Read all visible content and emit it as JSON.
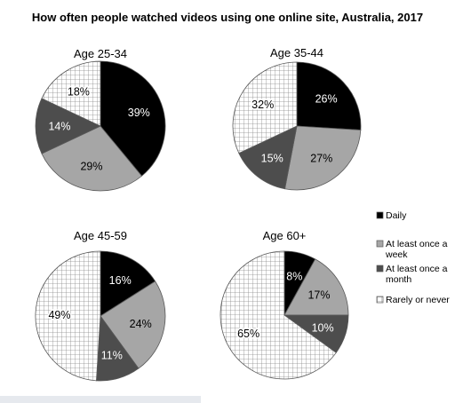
{
  "chart_data": {
    "type": "pie",
    "title": "How often people watched videos using one online site, Australia, 2017",
    "categories": [
      "Daily",
      "At least once a week",
      "At least once a month",
      "Rarely or never"
    ],
    "legend": {
      "placement": "right",
      "items": [
        {
          "label_lines": [
            "Daily"
          ],
          "fill": "solid-black"
        },
        {
          "label_lines": [
            "At least once a",
            "week"
          ],
          "fill": "light-gray"
        },
        {
          "label_lines": [
            "At least once a",
            "month"
          ],
          "fill": "dark-gray"
        },
        {
          "label_lines": [
            "Rarely or never"
          ],
          "fill": "grid-pattern"
        }
      ]
    },
    "colors": {
      "daily": "#000000",
      "week": "#a6a6a6",
      "month": "#4d4d4d",
      "rarely_bg": "#ffffff",
      "rarely_grid": "#8c8c8c"
    },
    "pies": [
      {
        "title": "Age 25-34",
        "values": [
          39,
          29,
          14,
          18
        ],
        "labels": [
          "39%",
          "29%",
          "14%",
          "18%"
        ]
      },
      {
        "title": "Age 35-44",
        "values": [
          26,
          27,
          15,
          32
        ],
        "labels": [
          "26%",
          "27%",
          "15%",
          "32%"
        ]
      },
      {
        "title": "Age 45-59",
        "values": [
          16,
          24,
          11,
          49
        ],
        "labels": [
          "16%",
          "24%",
          "11%",
          "49%"
        ]
      },
      {
        "title": "Age 60+",
        "values": [
          8,
          17,
          10,
          65
        ],
        "labels": [
          "8%",
          "17%",
          "10%",
          "65%"
        ]
      }
    ]
  }
}
